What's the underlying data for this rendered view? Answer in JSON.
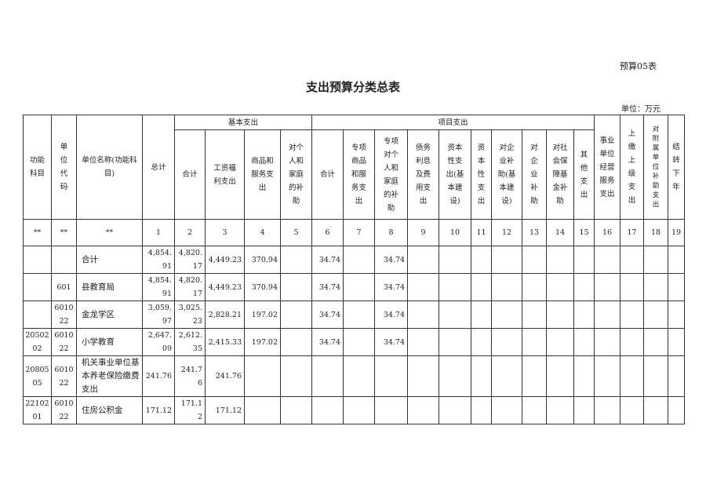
{
  "form_number": "预算05表",
  "title": "支出预算分类总表",
  "unit": "单位：万元",
  "header": {
    "func_subject": "功能\n科目",
    "unit_code": "单\n位\n代\n码",
    "unit_name": "单位名称(功能科\n目)",
    "total": "总计",
    "basic_group": "基本支出",
    "project_group": "项目支出",
    "basic": [
      "合计",
      "工资福\n利支出",
      "商品和\n服务支\n出",
      "对个\n人和\n家庭\n的补\n助"
    ],
    "project": [
      "合计",
      "专项\n商品\n和服\n务支\n出",
      "专项\n对个\n人和\n家庭\n的补\n助",
      "债务\n利息\n及费\n用支\n出",
      "资本\n性支\n出(基\n本建\n设)",
      "资\n本\n性\n支\n出",
      "对企\n业补\n助(基\n本建\n设)",
      "对\n企\n业\n补\n助",
      "对社\n会保\n障基\n金补\n助",
      "其\n他\n支\n出"
    ],
    "tail": [
      "事业\n单位\n经营\n服务\n支出",
      "上\n缴\n上\n级\n支\n出",
      "对\n附\n属\n单\n位\n补\n助\n支\n出",
      "结\n转\n下\n年"
    ],
    "index_row": [
      "**",
      "**",
      "**",
      "1",
      "2",
      "3",
      "4",
      "5",
      "6",
      "7",
      "8",
      "9",
      "10",
      "11",
      "12",
      "13",
      "14",
      "15",
      "16",
      "17",
      "18",
      "19"
    ]
  },
  "rows": [
    {
      "cells": [
        "",
        "",
        "合计",
        "4,854.91",
        "4,820.17",
        "4,449.23",
        "370.94",
        "",
        "34.74",
        "",
        "34.74",
        "",
        "",
        "",
        "",
        "",
        "",
        "",
        "",
        "",
        "",
        ""
      ]
    },
    {
      "cells": [
        "",
        "601",
        "县教育局",
        "4,854.91",
        "4,820.17",
        "4,449.23",
        "370.94",
        "",
        "34.74",
        "",
        "34.74",
        "",
        "",
        "",
        "",
        "",
        "",
        "",
        "",
        "",
        "",
        ""
      ]
    },
    {
      "cells": [
        "",
        "601022",
        "金龙学区",
        "3,059.97",
        "3,025.23",
        "2,828.21",
        "197.02",
        "",
        "34.74",
        "",
        "34.74",
        "",
        "",
        "",
        "",
        "",
        "",
        "",
        "",
        "",
        "",
        ""
      ]
    },
    {
      "cells": [
        "2050202",
        "601022",
        "小学教育",
        "2,647.09",
        "2,612.35",
        "2,415.33",
        "197.02",
        "",
        "34.74",
        "",
        "34.74",
        "",
        "",
        "",
        "",
        "",
        "",
        "",
        "",
        "",
        "",
        ""
      ]
    },
    {
      "cells": [
        "2080505",
        "601022",
        "机关事业单位基本养老保险缴费支出",
        "241.76",
        "241.76",
        "241.76",
        "",
        "",
        "",
        "",
        "",
        "",
        "",
        "",
        "",
        "",
        "",
        "",
        "",
        "",
        "",
        ""
      ]
    },
    {
      "cells": [
        "2210201",
        "601022",
        "住房公积金",
        "171.12",
        "171.12",
        "171.12",
        "",
        "",
        "",
        "",
        "",
        "",
        "",
        "",
        "",
        "",
        "",
        "",
        "",
        "",
        "",
        ""
      ]
    }
  ]
}
